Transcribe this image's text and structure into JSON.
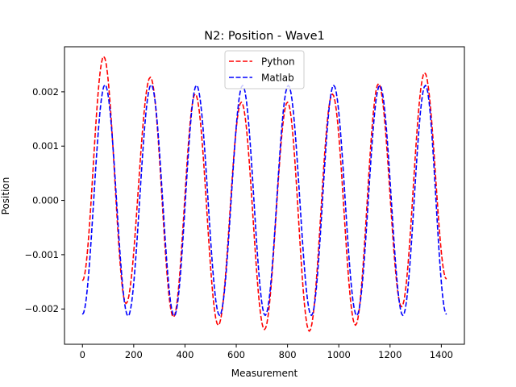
{
  "chart_data": {
    "type": "line",
    "title": "N2: Position - Wave1",
    "xlabel": "Measurement",
    "ylabel": "Position",
    "xlim": [
      -70,
      1490
    ],
    "ylim": [
      -0.00265,
      0.00283
    ],
    "x_ticks": [
      0,
      200,
      400,
      600,
      800,
      1000,
      1200,
      1400
    ],
    "x_tick_labels": [
      "0",
      "200",
      "400",
      "600",
      "800",
      "1000",
      "1200",
      "1400"
    ],
    "y_ticks": [
      -0.002,
      -0.001,
      0.0,
      0.001,
      0.002
    ],
    "y_tick_labels": [
      "−0.002",
      "−0.001",
      "0.000",
      "0.001",
      "0.002"
    ],
    "grid": false,
    "legend": {
      "position": "top-center"
    },
    "series": [
      {
        "name": "Python",
        "color": "#ff0000",
        "dash": "dashed",
        "x": [
          0,
          83,
          170,
          265,
          355,
          440,
          530,
          620,
          710,
          800,
          885,
          975,
          1065,
          1155,
          1245,
          1335,
          1420
        ],
        "values": [
          -0.00148,
          0.00265,
          -0.0019,
          0.00227,
          -0.00215,
          0.00196,
          -0.0023,
          0.00181,
          -0.00238,
          0.00181,
          -0.00241,
          0.00196,
          -0.0023,
          0.00215,
          -0.00196,
          0.00235,
          -0.00145
        ]
      },
      {
        "name": "Matlab",
        "color": "#0000ff",
        "dash": "dashed",
        "x": [
          0,
          88,
          178,
          268,
          358,
          445,
          535,
          625,
          713,
          803,
          893,
          980,
          1070,
          1160,
          1250,
          1338,
          1420
        ],
        "values": [
          -0.0021,
          0.00213,
          -0.00213,
          0.00213,
          -0.00213,
          0.00212,
          -0.00212,
          0.00212,
          -0.00212,
          0.00212,
          -0.00212,
          0.00212,
          -0.00212,
          0.00212,
          -0.00212,
          0.00212,
          -0.0021
        ]
      }
    ]
  }
}
